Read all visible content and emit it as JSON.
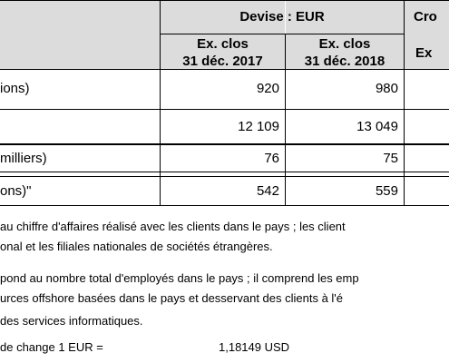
{
  "header": {
    "currency_group": "Devise : EUR",
    "cro_group": "Cro",
    "col_2017": {
      "line1": "Ex. clos",
      "line2": "31 déc. 2017"
    },
    "col_2018": {
      "line1": "Ex. clos",
      "line2": "31 déc. 2018"
    },
    "col_cro": "Ex"
  },
  "rows": [
    {
      "label": "ions)",
      "v2017": "920",
      "v2018": "980"
    },
    {
      "label": "",
      "v2017": "12 109",
      "v2018": "13 049"
    },
    {
      "label": "milliers)",
      "v2017": "76",
      "v2018": "75"
    },
    {
      "label": "ons)\"",
      "v2017": "542",
      "v2018": "559"
    }
  ],
  "notes": {
    "n1_line1": "au chiffre d'affaires réalisé avec les clients dans le pays ; les client",
    "n1_line2": "onal et les filiales nationales de sociétés étrangères.",
    "n2_line1": "pond au nombre total d'employés dans le pays ; il comprend les emp",
    "n2_line2": "urces offshore basées dans le pays et desservant des clients à l'é",
    "n2_line3": "des services informatiques.",
    "rate_label": "de change 1 EUR =",
    "rate_value": "1,18149 USD"
  }
}
